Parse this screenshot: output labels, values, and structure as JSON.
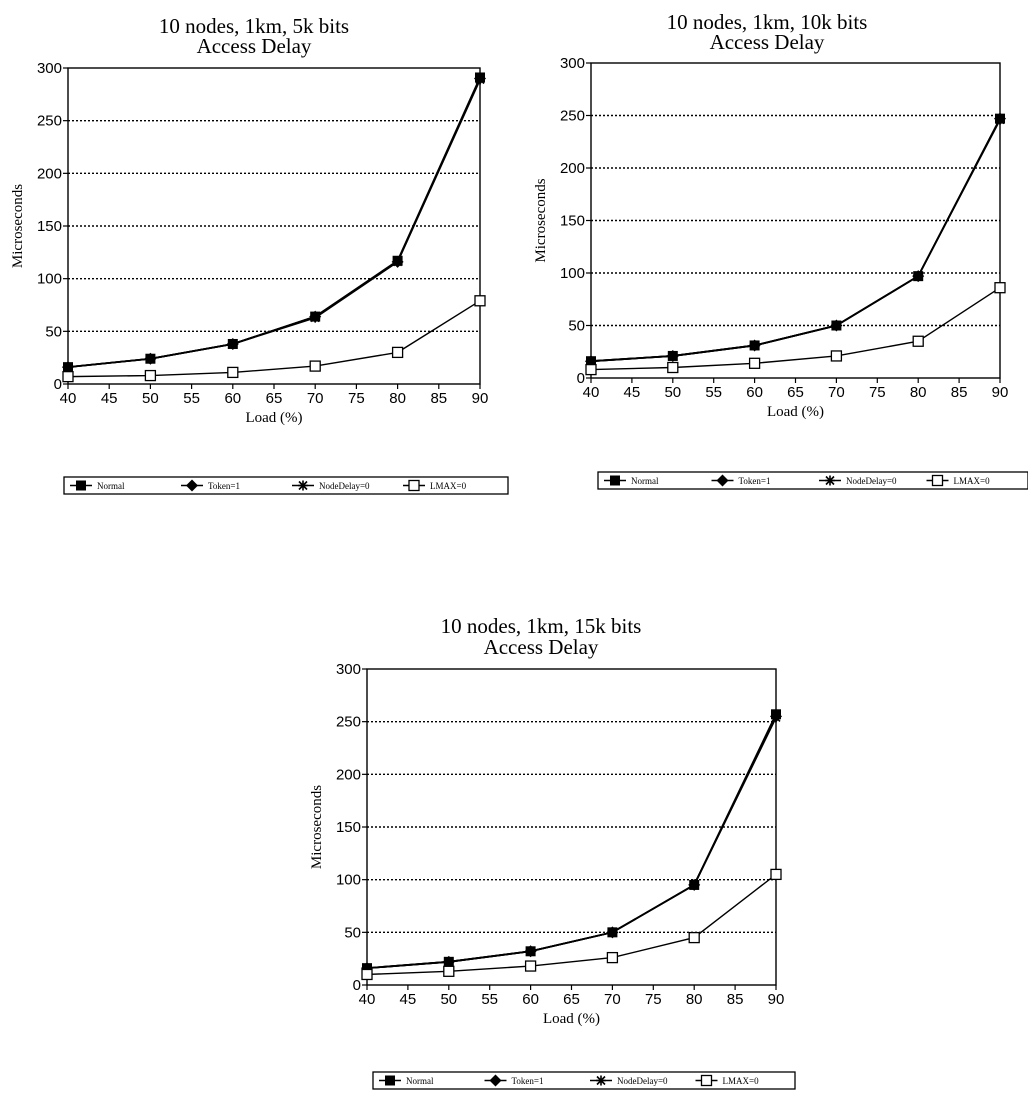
{
  "chart_data": [
    {
      "type": "line",
      "title": "10 nodes, 1km, 5k bits",
      "subtitle": "Access Delay",
      "xlabel": "Load (%)",
      "ylabel": "Microseconds",
      "x_ticks": [
        "40",
        "45",
        "50",
        "55",
        "60",
        "65",
        "70",
        "75",
        "80",
        "85",
        "90"
      ],
      "y_ticks": [
        "0",
        "50",
        "100",
        "150",
        "200",
        "250",
        "300"
      ],
      "xlim": [
        40,
        90
      ],
      "ylim": [
        0,
        300
      ],
      "grid": "horizontal dotted",
      "legend_position": "bottom",
      "x": [
        40,
        50,
        60,
        70,
        80,
        90
      ],
      "series": [
        {
          "name": "Normal",
          "marker": "filled-square",
          "values": [
            16,
            24,
            38,
            64,
            117,
            291
          ]
        },
        {
          "name": "Token=1",
          "marker": "filled-diamond",
          "values": [
            16,
            24,
            38,
            64,
            116,
            290
          ]
        },
        {
          "name": "NodeDelay=0",
          "marker": "star",
          "values": [
            16,
            24,
            38,
            63,
            116,
            289
          ]
        },
        {
          "name": "LMAX=0",
          "marker": "open-square",
          "values": [
            7,
            8,
            11,
            17,
            30,
            79
          ]
        }
      ]
    },
    {
      "type": "line",
      "title": "10 nodes, 1km, 10k bits",
      "subtitle": "Access Delay",
      "xlabel": "Load (%)",
      "ylabel": "Microseconds",
      "x_ticks": [
        "40",
        "45",
        "50",
        "55",
        "60",
        "65",
        "70",
        "75",
        "80",
        "85",
        "90"
      ],
      "y_ticks": [
        "0",
        "50",
        "100",
        "150",
        "200",
        "250",
        "300"
      ],
      "xlim": [
        40,
        90
      ],
      "ylim": [
        0,
        300
      ],
      "grid": "horizontal dotted",
      "legend_position": "bottom",
      "x": [
        40,
        50,
        60,
        70,
        80,
        90
      ],
      "series": [
        {
          "name": "Normal",
          "marker": "filled-square",
          "values": [
            16,
            21,
            31,
            50,
            97,
            247
          ]
        },
        {
          "name": "Token=1",
          "marker": "filled-diamond",
          "values": [
            16,
            21,
            31,
            50,
            97,
            247
          ]
        },
        {
          "name": "NodeDelay=0",
          "marker": "star",
          "values": [
            16,
            21,
            31,
            50,
            97,
            246
          ]
        },
        {
          "name": "LMAX=0",
          "marker": "open-square",
          "values": [
            8,
            10,
            14,
            21,
            35,
            86
          ]
        }
      ]
    },
    {
      "type": "line",
      "title": "10 nodes, 1km, 15k bits",
      "subtitle": "Access Delay",
      "xlabel": "Load (%)",
      "ylabel": "Microseconds",
      "x_ticks": [
        "40",
        "45",
        "50",
        "55",
        "60",
        "65",
        "70",
        "75",
        "80",
        "85",
        "90"
      ],
      "y_ticks": [
        "0",
        "50",
        "100",
        "150",
        "200",
        "250",
        "300"
      ],
      "xlim": [
        40,
        90
      ],
      "ylim": [
        0,
        300
      ],
      "grid": "horizontal dotted",
      "legend_position": "bottom",
      "x": [
        40,
        50,
        60,
        70,
        80,
        90
      ],
      "series": [
        {
          "name": "Normal",
          "marker": "filled-square",
          "values": [
            16,
            22,
            32,
            50,
            95,
            257
          ]
        },
        {
          "name": "Token=1",
          "marker": "filled-diamond",
          "values": [
            16,
            22,
            32,
            50,
            95,
            255
          ]
        },
        {
          "name": "NodeDelay=0",
          "marker": "star",
          "values": [
            16,
            22,
            32,
            50,
            95,
            254
          ]
        },
        {
          "name": "LMAX=0",
          "marker": "open-square",
          "values": [
            10,
            13,
            18,
            26,
            45,
            105
          ]
        }
      ]
    }
  ]
}
